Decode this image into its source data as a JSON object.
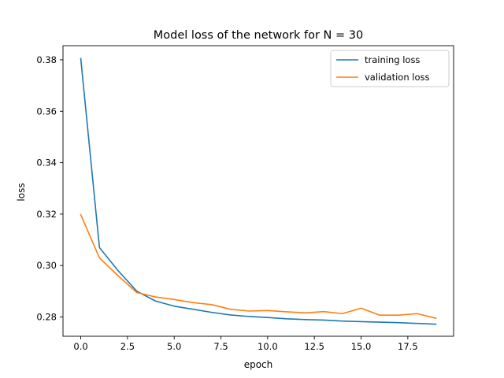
{
  "chart_data": {
    "type": "line",
    "title": "Model loss of the network for N = 30",
    "xlabel": "epoch",
    "ylabel": "loss",
    "xlim": [
      -0.95,
      19.95
    ],
    "ylim": [
      0.2725,
      0.3855
    ],
    "xticks": [
      0,
      2.5,
      5,
      7.5,
      10,
      12.5,
      15,
      17.5
    ],
    "xtick_labels": [
      "0.0",
      "2.5",
      "5.0",
      "7.5",
      "10.0",
      "12.5",
      "15.0",
      "17.5"
    ],
    "yticks": [
      0.28,
      0.3,
      0.32,
      0.34,
      0.36,
      0.38
    ],
    "ytick_labels": [
      "0.28",
      "0.30",
      "0.32",
      "0.34",
      "0.36",
      "0.38"
    ],
    "grid": false,
    "legend_position": "top-right",
    "x": [
      0,
      1,
      2,
      3,
      4,
      5,
      6,
      7,
      8,
      9,
      10,
      11,
      12,
      13,
      14,
      15,
      16,
      17,
      18,
      19
    ],
    "series": [
      {
        "name": "training loss",
        "color": "#1f77b4",
        "values": [
          0.3805,
          0.307,
          0.298,
          0.29,
          0.2862,
          0.2842,
          0.283,
          0.2818,
          0.2808,
          0.2802,
          0.2798,
          0.2793,
          0.279,
          0.2788,
          0.2784,
          0.2782,
          0.278,
          0.2778,
          0.2775,
          0.2772
        ]
      },
      {
        "name": "validation loss",
        "color": "#ff7f0e",
        "values": [
          0.3198,
          0.303,
          0.296,
          0.2895,
          0.2878,
          0.2868,
          0.2856,
          0.2848,
          0.283,
          0.2823,
          0.2825,
          0.282,
          0.2816,
          0.2821,
          0.2813,
          0.2834,
          0.2807,
          0.2807,
          0.2813,
          0.2795
        ]
      }
    ]
  }
}
